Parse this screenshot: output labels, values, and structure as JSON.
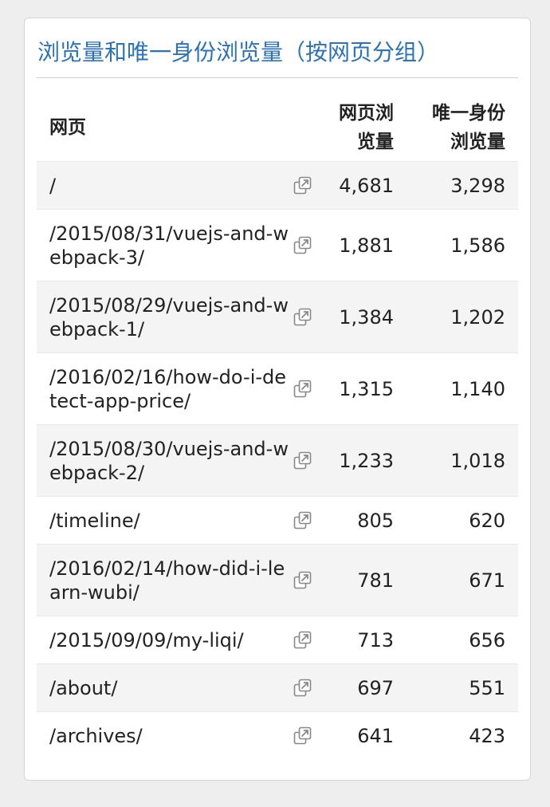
{
  "colors": {
    "title": "#2c72b8",
    "row_alt": "#f4f4f4",
    "text": "#222222",
    "icon": "#888888"
  },
  "card": {
    "title": "浏览量和唯一身份浏览量（按网页分组）"
  },
  "table": {
    "columns": {
      "page": "网页",
      "views": "网页浏览量",
      "unique_views": "唯一身份浏览量"
    },
    "columns_display": {
      "views_line1": "网页浏",
      "views_line2": "览量",
      "unique_line1": "唯一身份",
      "unique_line2": "浏览量"
    },
    "rows": [
      {
        "page": "/",
        "views": "4,681",
        "unique_views": "3,298",
        "icon": "open-external-icon"
      },
      {
        "page": "/2015/08/31/vuejs-and-webpack-3/",
        "views": "1,881",
        "unique_views": "1,586",
        "icon": "open-external-icon"
      },
      {
        "page": "/2015/08/29/vuejs-and-webpack-1/",
        "views": "1,384",
        "unique_views": "1,202",
        "icon": "open-external-icon"
      },
      {
        "page": "/2016/02/16/how-do-i-detect-app-price/",
        "views": "1,315",
        "unique_views": "1,140",
        "icon": "open-external-icon"
      },
      {
        "page": "/2015/08/30/vuejs-and-webpack-2/",
        "views": "1,233",
        "unique_views": "1,018",
        "icon": "open-external-icon"
      },
      {
        "page": "/timeline/",
        "views": "805",
        "unique_views": "620",
        "icon": "open-external-icon"
      },
      {
        "page": "/2016/02/14/how-did-i-learn-wubi/",
        "views": "781",
        "unique_views": "671",
        "icon": "open-external-icon"
      },
      {
        "page": "/2015/09/09/my-liqi/",
        "views": "713",
        "unique_views": "656",
        "icon": "open-external-icon"
      },
      {
        "page": "/about/",
        "views": "697",
        "unique_views": "551",
        "icon": "open-external-icon"
      },
      {
        "page": "/archives/",
        "views": "641",
        "unique_views": "423",
        "icon": "open-external-icon"
      }
    ]
  }
}
